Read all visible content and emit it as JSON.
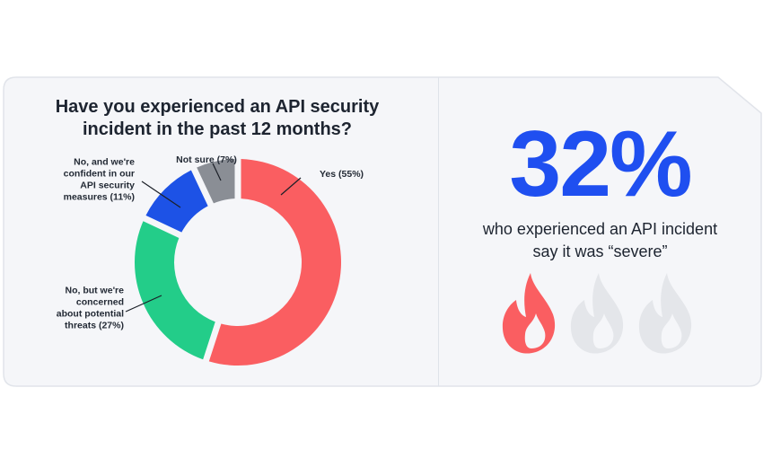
{
  "chart_data": {
    "type": "pie",
    "title": "Have you experienced an API security incident in the past 12 months?",
    "categories": [
      "Yes",
      "No, but we're concerned about potential threats",
      "No, and we're confident in our API security measures",
      "Not sure"
    ],
    "values": [
      55,
      27,
      11,
      7
    ],
    "unit": "%",
    "colors": [
      "#fa5e61",
      "#23cd89",
      "#1d52e6",
      "#8a8e95"
    ],
    "labels": [
      [
        "Yes (55%)"
      ],
      [
        "No, but we're",
        "concerned",
        "about potential",
        "threats (27%)"
      ],
      [
        "No, and we're",
        "confident in our",
        "API security",
        "measures (11%)"
      ],
      [
        "Not sure (7%)"
      ]
    ]
  },
  "stat": {
    "value": "32%",
    "caption_line1": "who experienced an API incident",
    "caption_line2": "say it was “severe”",
    "rating": {
      "filled": 1,
      "total": 3,
      "icon": "flame-icon",
      "filled_color": "#fa5e61",
      "empty_color": "#e4e6ea"
    },
    "value_color": "#1f4ff0"
  }
}
